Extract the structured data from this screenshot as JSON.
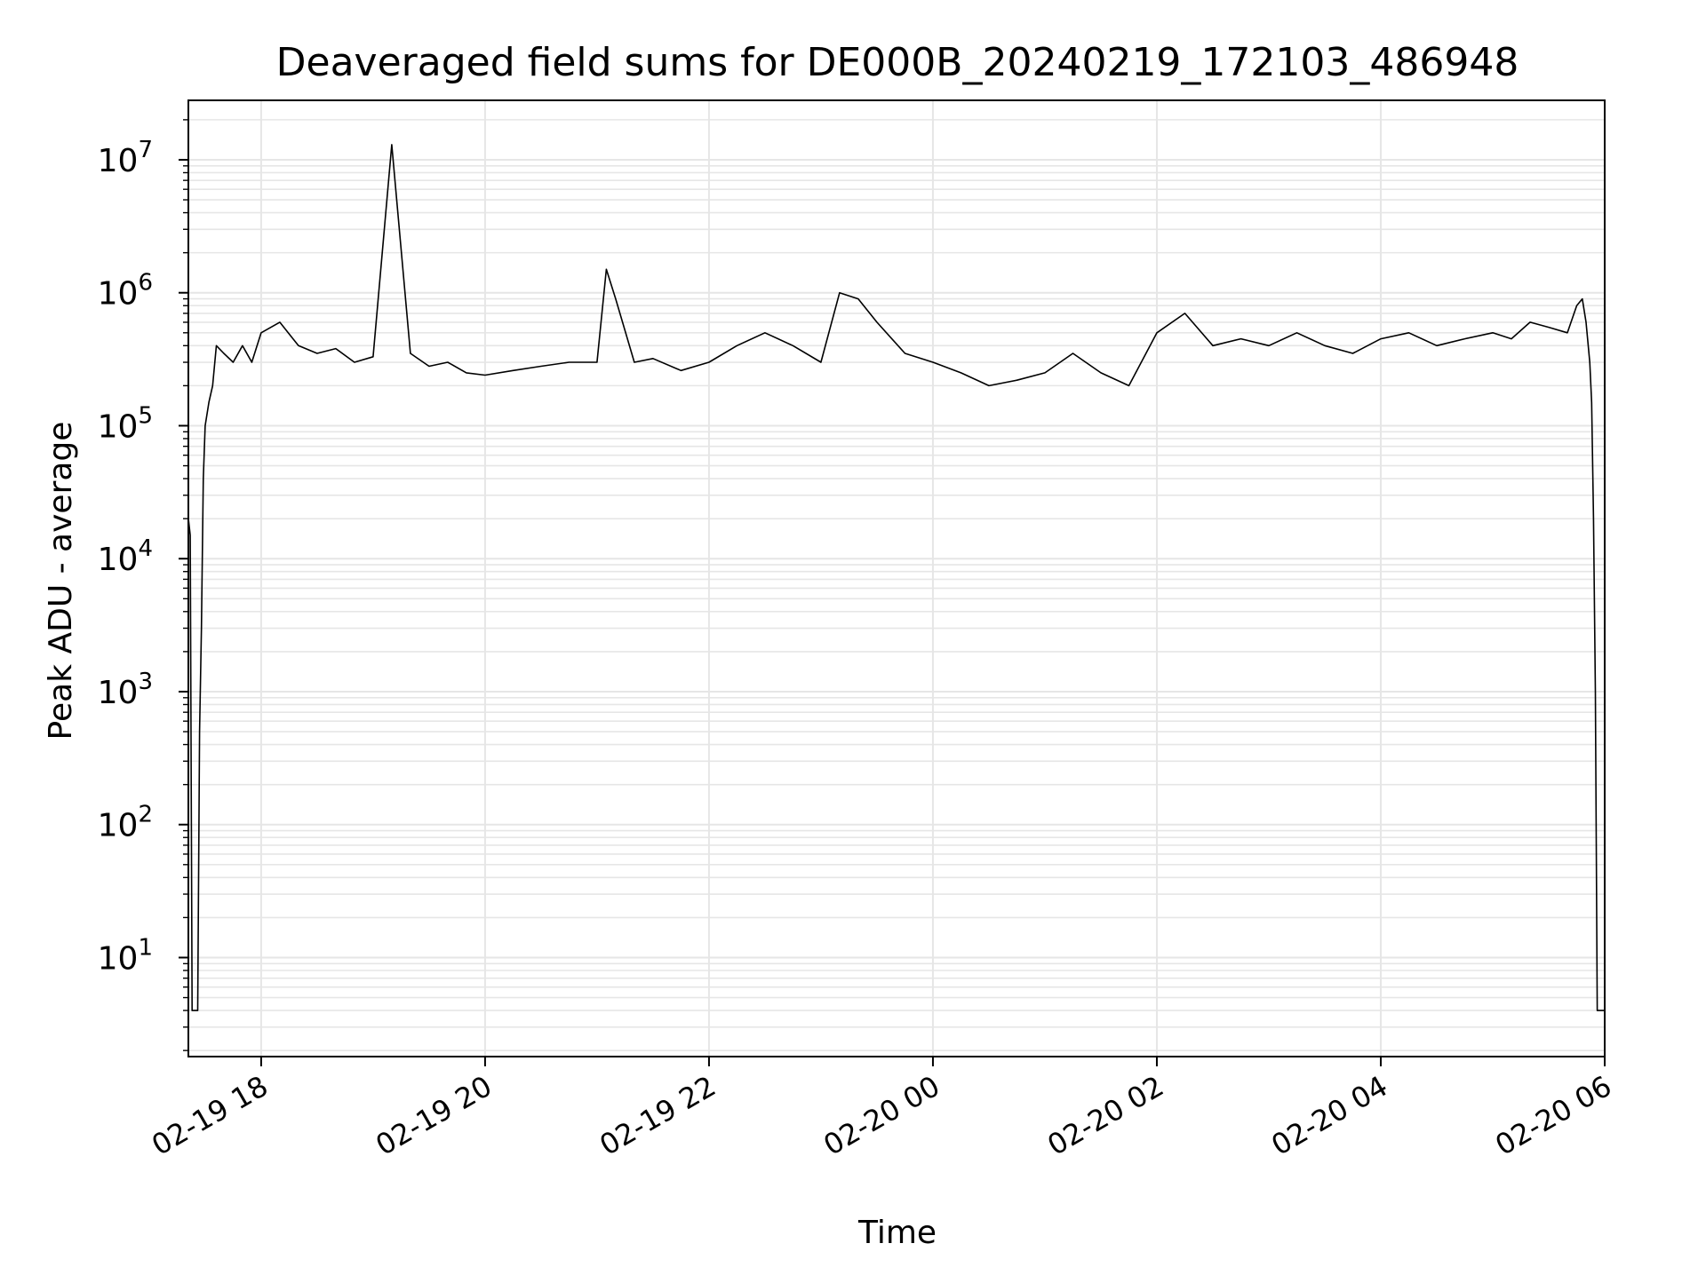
{
  "chart_data": {
    "type": "line",
    "title": "Deaveraged field sums for DE000B_20240219_172103_486948",
    "xlabel": "Time",
    "ylabel": "Peak ADU - average",
    "x_scale": "time",
    "y_scale": "log",
    "xlim": [
      "2024-02-19 17:21",
      "2024-02-20 06:00"
    ],
    "ylim": [
      1.8,
      28000000
    ],
    "x_ticks": [
      "2024-02-19 18:00",
      "2024-02-19 20:00",
      "2024-02-19 22:00",
      "2024-02-20 00:00",
      "2024-02-20 02:00",
      "2024-02-20 04:00",
      "2024-02-20 06:00"
    ],
    "x_tick_labels": [
      "02-19 18",
      "02-19 20",
      "02-19 22",
      "02-20 00",
      "02-20 02",
      "02-20 04",
      "02-20 06"
    ],
    "y_ticks": [
      10,
      100,
      1000,
      10000,
      100000,
      1000000,
      10000000
    ],
    "y_tick_labels": [
      {
        "base": "10",
        "exp": "1"
      },
      {
        "base": "10",
        "exp": "2"
      },
      {
        "base": "10",
        "exp": "3"
      },
      {
        "base": "10",
        "exp": "4"
      },
      {
        "base": "10",
        "exp": "5"
      },
      {
        "base": "10",
        "exp": "6"
      },
      {
        "base": "10",
        "exp": "7"
      }
    ],
    "grid": true,
    "line_color": "#000000",
    "grid_color": "#e6e6e6",
    "series": [
      {
        "x": [
          "2024-02-19 17:21",
          "2024-02-19 17:22",
          "2024-02-19 17:23",
          "2024-02-19 17:24",
          "2024-02-19 17:25",
          "2024-02-19 17:26",
          "2024-02-19 17:27",
          "2024-02-19 17:28",
          "2024-02-19 17:29",
          "2024-02-19 17:30",
          "2024-02-19 17:32",
          "2024-02-19 17:34",
          "2024-02-19 17:36",
          "2024-02-19 17:40",
          "2024-02-19 17:45",
          "2024-02-19 17:50",
          "2024-02-19 17:55",
          "2024-02-19 18:00",
          "2024-02-19 18:10",
          "2024-02-19 18:20",
          "2024-02-19 18:30",
          "2024-02-19 18:40",
          "2024-02-19 18:50",
          "2024-02-19 19:00",
          "2024-02-19 19:10",
          "2024-02-19 19:20",
          "2024-02-19 19:30",
          "2024-02-19 19:40",
          "2024-02-19 19:50",
          "2024-02-19 20:00",
          "2024-02-19 20:15",
          "2024-02-19 20:30",
          "2024-02-19 20:45",
          "2024-02-19 21:00",
          "2024-02-19 21:05",
          "2024-02-19 21:10",
          "2024-02-19 21:20",
          "2024-02-19 21:30",
          "2024-02-19 21:45",
          "2024-02-19 22:00",
          "2024-02-19 22:15",
          "2024-02-19 22:30",
          "2024-02-19 22:45",
          "2024-02-19 23:00",
          "2024-02-19 23:10",
          "2024-02-19 23:20",
          "2024-02-19 23:30",
          "2024-02-19 23:45",
          "2024-02-20 00:00",
          "2024-02-20 00:15",
          "2024-02-20 00:30",
          "2024-02-20 00:45",
          "2024-02-20 01:00",
          "2024-02-20 01:15",
          "2024-02-20 01:30",
          "2024-02-20 01:45",
          "2024-02-20 02:00",
          "2024-02-20 02:15",
          "2024-02-20 02:30",
          "2024-02-20 02:45",
          "2024-02-20 03:00",
          "2024-02-20 03:15",
          "2024-02-20 03:30",
          "2024-02-20 03:45",
          "2024-02-20 04:00",
          "2024-02-20 04:15",
          "2024-02-20 04:30",
          "2024-02-20 04:45",
          "2024-02-20 05:00",
          "2024-02-20 05:10",
          "2024-02-20 05:20",
          "2024-02-20 05:30",
          "2024-02-20 05:40",
          "2024-02-20 05:45",
          "2024-02-20 05:48",
          "2024-02-20 05:50",
          "2024-02-20 05:52",
          "2024-02-20 05:53",
          "2024-02-20 05:54",
          "2024-02-20 05:55",
          "2024-02-20 05:56",
          "2024-02-20 05:58",
          "2024-02-20 06:00"
        ],
        "y": [
          20000,
          15000,
          4,
          4,
          4,
          4,
          500,
          3000,
          40000,
          100000,
          150000,
          200000,
          400000,
          350000,
          300000,
          400000,
          300000,
          500000,
          600000,
          400000,
          350000,
          380000,
          300000,
          330000,
          13000000,
          350000,
          280000,
          300000,
          250000,
          240000,
          260000,
          280000,
          300000,
          300000,
          1500000,
          900000,
          300000,
          320000,
          260000,
          300000,
          400000,
          500000,
          400000,
          300000,
          1000000,
          900000,
          600000,
          350000,
          300000,
          250000,
          200000,
          220000,
          250000,
          350000,
          250000,
          200000,
          500000,
          700000,
          400000,
          450000,
          400000,
          500000,
          400000,
          350000,
          450000,
          500000,
          400000,
          450000,
          500000,
          450000,
          600000,
          550000,
          500000,
          800000,
          900000,
          600000,
          300000,
          150000,
          20000,
          1000,
          4,
          4,
          4
        ]
      }
    ]
  }
}
